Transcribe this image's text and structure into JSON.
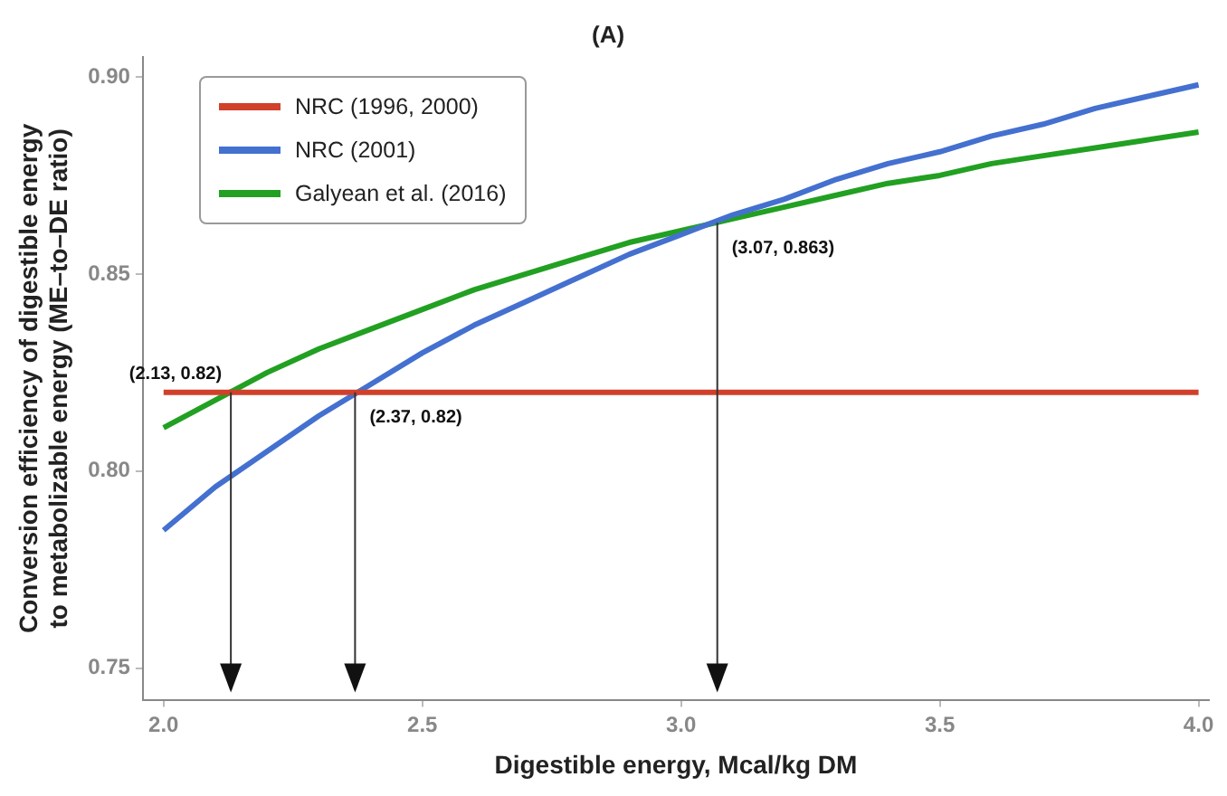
{
  "chart_data": {
    "type": "line",
    "title": "(A)",
    "xlabel": "Digestible energy, Mcal/kg DM",
    "ylabel": "Conversion efficiency of digestible energy\nto metabolizable energy (ME–to–DE ratio)",
    "x": [
      2.0,
      2.1,
      2.2,
      2.3,
      2.4,
      2.5,
      2.6,
      2.7,
      2.8,
      2.9,
      3.0,
      3.1,
      3.2,
      3.3,
      3.4,
      3.5,
      3.6,
      3.7,
      3.8,
      3.9,
      4.0
    ],
    "series": [
      {
        "name": "NRC (1996, 2000)",
        "color": "#d0402a",
        "x": [
          2.0,
          4.0
        ],
        "values": [
          0.82,
          0.82
        ]
      },
      {
        "name": "NRC (2001)",
        "color": "#4470d0",
        "values": [
          0.785,
          0.796,
          0.805,
          0.814,
          0.822,
          0.83,
          0.837,
          0.843,
          0.849,
          0.855,
          0.86,
          0.865,
          0.869,
          0.874,
          0.878,
          0.881,
          0.885,
          0.888,
          0.892,
          0.895,
          0.898
        ]
      },
      {
        "name": "Galyean et al. (2016)",
        "color": "#22a022",
        "values": [
          0.811,
          0.818,
          0.825,
          0.831,
          0.836,
          0.841,
          0.846,
          0.85,
          0.854,
          0.858,
          0.861,
          0.864,
          0.867,
          0.87,
          0.873,
          0.875,
          0.878,
          0.88,
          0.882,
          0.884,
          0.886
        ]
      }
    ],
    "xlim": [
      1.96,
      4.02
    ],
    "ylim": [
      0.742,
      0.905
    ],
    "xticks": [
      {
        "value": 2,
        "label": "2.0"
      },
      {
        "value": 2.5,
        "label": "2.5"
      },
      {
        "value": 3,
        "label": "3.0"
      },
      {
        "value": 3.5,
        "label": "3.5"
      },
      {
        "value": 4,
        "label": "4.0"
      }
    ],
    "yticks": [
      0.75,
      {
        "value": 0.8,
        "label": "0.80"
      },
      0.85,
      {
        "value": 0.9,
        "label": "0.90"
      }
    ],
    "annotations": [
      {
        "text": "(2.13, 0.82)",
        "x": 2.13,
        "y": 0.82
      },
      {
        "text": "(2.37, 0.82)",
        "x": 2.37,
        "y": 0.82
      },
      {
        "text": "(3.07, 0.863)",
        "x": 3.07,
        "y": 0.863
      }
    ],
    "grid": false,
    "legend": "top left",
    "marker": "none",
    "line_style": "solid"
  }
}
